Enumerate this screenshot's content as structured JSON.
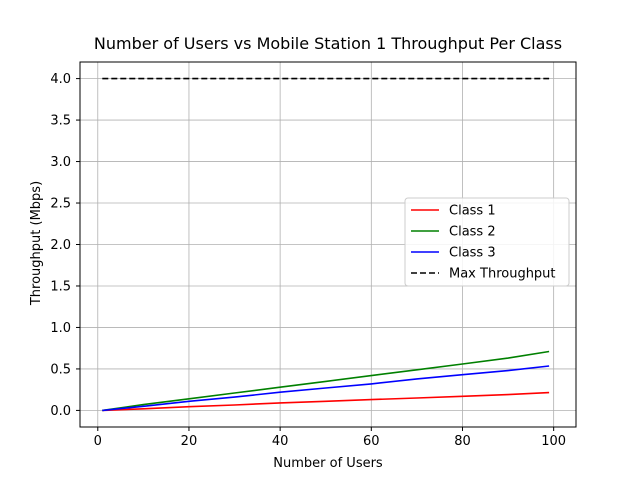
{
  "chart_data": {
    "type": "line",
    "title": "Number of Users vs Mobile Station 1 Throughput Per Class",
    "xlabel": "Number of Users",
    "ylabel": "Throughput (Mbps)",
    "xlim": [
      -3.9,
      104.9
    ],
    "ylim": [
      -0.2,
      4.2
    ],
    "xticks": [
      0,
      20,
      40,
      60,
      80,
      100
    ],
    "yticks": [
      0.0,
      0.5,
      1.0,
      1.5,
      2.0,
      2.5,
      3.0,
      3.5,
      4.0
    ],
    "xtick_labels": [
      "0",
      "20",
      "40",
      "60",
      "80",
      "100"
    ],
    "ytick_labels": [
      "0.0",
      "0.5",
      "1.0",
      "1.5",
      "2.0",
      "2.5",
      "3.0",
      "3.5",
      "4.0"
    ],
    "grid": true,
    "legend_position": "center-right",
    "x": [
      1,
      10,
      20,
      30,
      40,
      50,
      60,
      70,
      80,
      90,
      99
    ],
    "series": [
      {
        "name": "Class 1",
        "color": "#ff0000",
        "style": "solid",
        "values": [
          0.0,
          0.02,
          0.045,
          0.065,
          0.09,
          0.11,
          0.13,
          0.15,
          0.17,
          0.19,
          0.215
        ]
      },
      {
        "name": "Class 2",
        "color": "#008000",
        "style": "solid",
        "values": [
          0.0,
          0.07,
          0.14,
          0.21,
          0.28,
          0.35,
          0.42,
          0.49,
          0.56,
          0.63,
          0.71
        ]
      },
      {
        "name": "Class 3",
        "color": "#0000ff",
        "style": "solid",
        "values": [
          0.0,
          0.05,
          0.11,
          0.16,
          0.22,
          0.27,
          0.32,
          0.38,
          0.43,
          0.48,
          0.535
        ]
      },
      {
        "name": "Max Throughput",
        "color": "#000000",
        "style": "dashed",
        "values": [
          4.0,
          4.0,
          4.0,
          4.0,
          4.0,
          4.0,
          4.0,
          4.0,
          4.0,
          4.0,
          4.0
        ]
      }
    ]
  }
}
